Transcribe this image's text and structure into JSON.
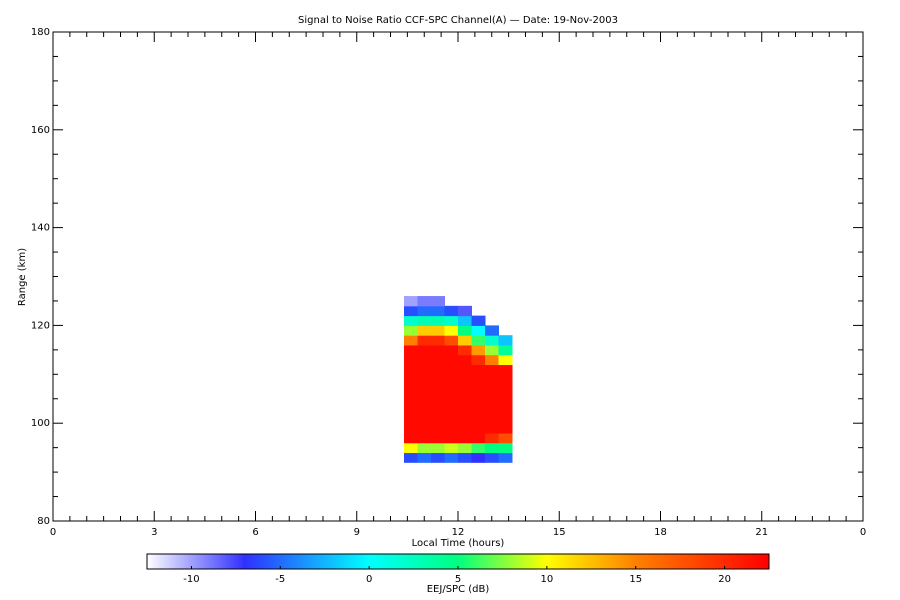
{
  "chart_data": {
    "type": "heatmap",
    "title": "Signal to Noise Ratio CCF-SPC Channel(A) — Date: 19-Nov-2003",
    "x_label": "Local Time (hours)",
    "y_label": "Range (km)",
    "xlim": [
      0,
      24
    ],
    "xticks": [
      0,
      3,
      6,
      9,
      12,
      15,
      18,
      21,
      {
        "value": 24,
        "label": "0"
      }
    ],
    "ylim": [
      80,
      180
    ],
    "yticks": [
      80,
      100,
      120,
      140,
      160,
      180
    ],
    "x_edges": [
      10.4,
      10.8,
      11.2,
      11.6,
      12.0,
      12.4,
      12.8,
      13.2,
      13.6
    ],
    "y_edges": [
      92,
      94,
      96,
      98,
      100,
      102,
      104,
      106,
      108,
      110,
      112,
      114,
      116,
      118,
      120,
      122,
      124,
      126
    ],
    "z": [
      [
        -6,
        -5,
        -6,
        -5,
        -6,
        -7,
        -6,
        -5
      ],
      [
        10,
        8,
        8,
        9,
        8,
        6,
        5,
        5
      ],
      [
        22,
        22,
        22,
        22,
        22,
        22,
        20,
        18
      ],
      [
        22,
        22,
        22,
        22,
        22,
        22,
        22,
        22
      ],
      [
        22,
        22,
        22,
        22,
        22,
        22,
        22,
        22
      ],
      [
        22,
        22,
        22,
        22,
        22,
        22,
        22,
        22
      ],
      [
        22,
        22,
        22,
        22,
        22,
        22,
        22,
        22
      ],
      [
        22,
        22,
        22,
        22,
        22,
        22,
        22,
        22
      ],
      [
        22,
        22,
        22,
        22,
        22,
        22,
        22,
        22
      ],
      [
        22,
        22,
        22,
        22,
        22,
        22,
        22,
        22
      ],
      [
        22,
        22,
        22,
        22,
        22,
        20,
        15,
        10
      ],
      [
        22,
        22,
        22,
        22,
        20,
        14,
        8,
        4
      ],
      [
        15,
        20,
        20,
        18,
        12,
        6,
        2,
        -2
      ],
      [
        8,
        12,
        12,
        10,
        5,
        0,
        -5,
        null
      ],
      [
        2,
        3,
        3,
        2,
        -2,
        -6,
        null,
        null
      ],
      [
        -6,
        -5,
        -5,
        -6,
        -8,
        null,
        null,
        null
      ],
      [
        -10,
        -9,
        -9,
        null,
        null,
        null,
        null,
        null
      ]
    ],
    "colorbar": {
      "label": "EEJ/SPC (dB)",
      "lim": [
        -12.5,
        22.5
      ],
      "ticks": [
        -10,
        -5,
        0,
        5,
        10,
        15,
        20
      ],
      "colormap": [
        {
          "value": -12.5,
          "color": "#ffffff"
        },
        {
          "value": -7,
          "color": "#3030ff"
        },
        {
          "value": 0,
          "color": "#00ffff"
        },
        {
          "value": 5,
          "color": "#00ff80"
        },
        {
          "value": 10,
          "color": "#ffff00"
        },
        {
          "value": 15,
          "color": "#ff8000"
        },
        {
          "value": 22.5,
          "color": "#ff0000"
        }
      ]
    }
  }
}
